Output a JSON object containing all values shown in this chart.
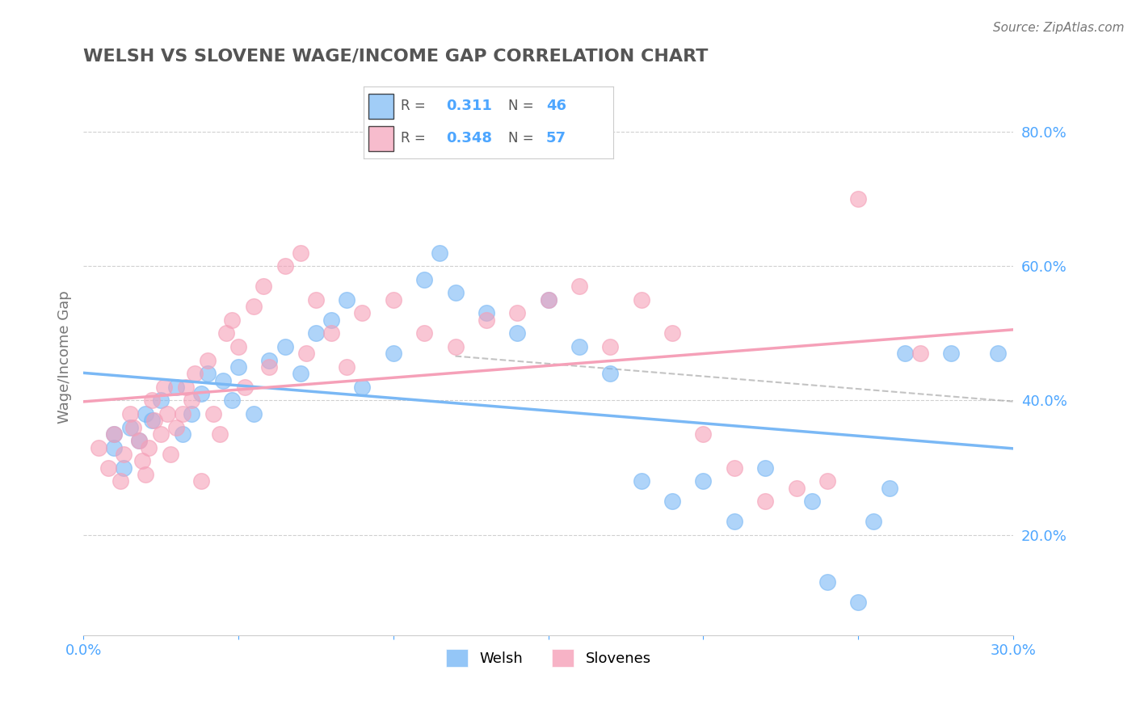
{
  "title": "WELSH VS SLOVENE WAGE/INCOME GAP CORRELATION CHART",
  "source": "Source: ZipAtlas.com",
  "ylabel": "Wage/Income Gap",
  "xlim": [
    0.0,
    0.3
  ],
  "ylim": [
    0.05,
    0.88
  ],
  "xticks": [
    0.0,
    0.05,
    0.1,
    0.15,
    0.2,
    0.25,
    0.3
  ],
  "ytick_labels_right": [
    "20.0%",
    "40.0%",
    "60.0%",
    "80.0%"
  ],
  "yticks_right": [
    0.2,
    0.4,
    0.6,
    0.8
  ],
  "welsh_color": "#7ab8f5",
  "slovene_color": "#f5a0b8",
  "welsh_R": "0.311",
  "welsh_N": "46",
  "slovene_R": "0.348",
  "slovene_N": "57",
  "welsh_scatter": [
    [
      0.01,
      0.33
    ],
    [
      0.01,
      0.35
    ],
    [
      0.015,
      0.36
    ],
    [
      0.013,
      0.3
    ],
    [
      0.02,
      0.38
    ],
    [
      0.018,
      0.34
    ],
    [
      0.025,
      0.4
    ],
    [
      0.022,
      0.37
    ],
    [
      0.03,
      0.42
    ],
    [
      0.032,
      0.35
    ],
    [
      0.035,
      0.38
    ],
    [
      0.04,
      0.44
    ],
    [
      0.038,
      0.41
    ],
    [
      0.045,
      0.43
    ],
    [
      0.05,
      0.45
    ],
    [
      0.048,
      0.4
    ],
    [
      0.055,
      0.38
    ],
    [
      0.06,
      0.46
    ],
    [
      0.065,
      0.48
    ],
    [
      0.07,
      0.44
    ],
    [
      0.075,
      0.5
    ],
    [
      0.08,
      0.52
    ],
    [
      0.085,
      0.55
    ],
    [
      0.09,
      0.42
    ],
    [
      0.1,
      0.47
    ],
    [
      0.11,
      0.58
    ],
    [
      0.115,
      0.62
    ],
    [
      0.12,
      0.56
    ],
    [
      0.13,
      0.53
    ],
    [
      0.14,
      0.5
    ],
    [
      0.15,
      0.55
    ],
    [
      0.16,
      0.48
    ],
    [
      0.17,
      0.44
    ],
    [
      0.18,
      0.28
    ],
    [
      0.19,
      0.25
    ],
    [
      0.2,
      0.28
    ],
    [
      0.21,
      0.22
    ],
    [
      0.22,
      0.3
    ],
    [
      0.235,
      0.25
    ],
    [
      0.24,
      0.13
    ],
    [
      0.25,
      0.1
    ],
    [
      0.255,
      0.22
    ],
    [
      0.26,
      0.27
    ],
    [
      0.265,
      0.47
    ],
    [
      0.28,
      0.47
    ],
    [
      0.295,
      0.47
    ]
  ],
  "slovene_scatter": [
    [
      0.005,
      0.33
    ],
    [
      0.008,
      0.3
    ],
    [
      0.01,
      0.35
    ],
    [
      0.012,
      0.28
    ],
    [
      0.013,
      0.32
    ],
    [
      0.015,
      0.38
    ],
    [
      0.016,
      0.36
    ],
    [
      0.018,
      0.34
    ],
    [
      0.019,
      0.31
    ],
    [
      0.02,
      0.29
    ],
    [
      0.021,
      0.33
    ],
    [
      0.022,
      0.4
    ],
    [
      0.023,
      0.37
    ],
    [
      0.025,
      0.35
    ],
    [
      0.026,
      0.42
    ],
    [
      0.027,
      0.38
    ],
    [
      0.028,
      0.32
    ],
    [
      0.03,
      0.36
    ],
    [
      0.032,
      0.38
    ],
    [
      0.033,
      0.42
    ],
    [
      0.035,
      0.4
    ],
    [
      0.036,
      0.44
    ],
    [
      0.038,
      0.28
    ],
    [
      0.04,
      0.46
    ],
    [
      0.042,
      0.38
    ],
    [
      0.044,
      0.35
    ],
    [
      0.046,
      0.5
    ],
    [
      0.048,
      0.52
    ],
    [
      0.05,
      0.48
    ],
    [
      0.052,
      0.42
    ],
    [
      0.055,
      0.54
    ],
    [
      0.058,
      0.57
    ],
    [
      0.06,
      0.45
    ],
    [
      0.065,
      0.6
    ],
    [
      0.07,
      0.62
    ],
    [
      0.072,
      0.47
    ],
    [
      0.075,
      0.55
    ],
    [
      0.08,
      0.5
    ],
    [
      0.085,
      0.45
    ],
    [
      0.09,
      0.53
    ],
    [
      0.1,
      0.55
    ],
    [
      0.11,
      0.5
    ],
    [
      0.12,
      0.48
    ],
    [
      0.13,
      0.52
    ],
    [
      0.14,
      0.53
    ],
    [
      0.15,
      0.55
    ],
    [
      0.16,
      0.57
    ],
    [
      0.17,
      0.48
    ],
    [
      0.18,
      0.55
    ],
    [
      0.19,
      0.5
    ],
    [
      0.2,
      0.35
    ],
    [
      0.21,
      0.3
    ],
    [
      0.22,
      0.25
    ],
    [
      0.23,
      0.27
    ],
    [
      0.24,
      0.28
    ],
    [
      0.25,
      0.7
    ],
    [
      0.27,
      0.47
    ]
  ],
  "background_color": "#ffffff",
  "grid_color": "#d0d0d0",
  "title_color": "#555555",
  "axis_color": "#4da6ff"
}
